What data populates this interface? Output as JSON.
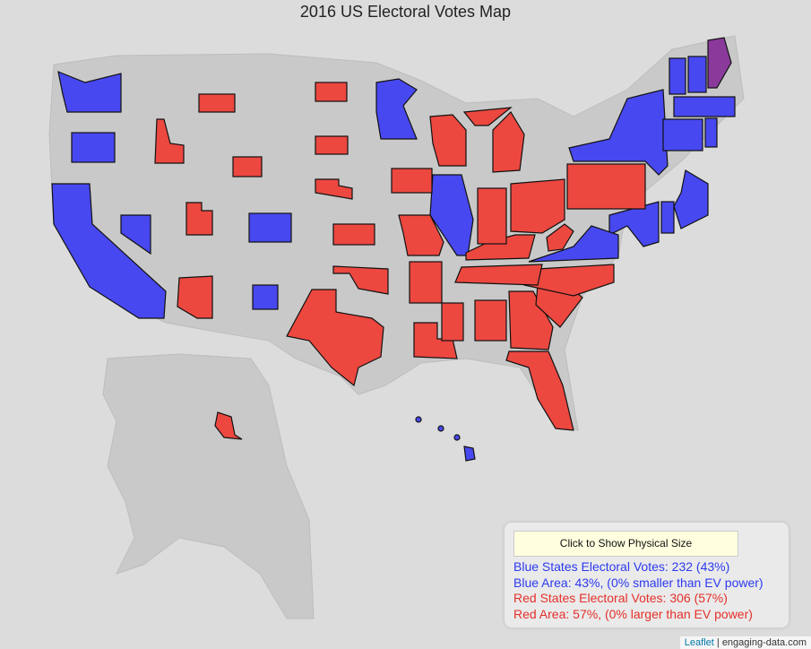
{
  "title": "2016 US Electoral Votes Map",
  "panel": {
    "button": "Click to Show Physical Size",
    "lines": [
      "Blue States Electoral Votes: 232 (43%)",
      "Blue Area: 43%, (0% smaller than EV power)",
      "Red States Electoral Votes: 306 (57%)",
      "Red Area: 57%, (0% larger than EV power)"
    ]
  },
  "attribution": {
    "link": "Leaflet",
    "separator": "|",
    "source": "engaging-data.com"
  }
}
